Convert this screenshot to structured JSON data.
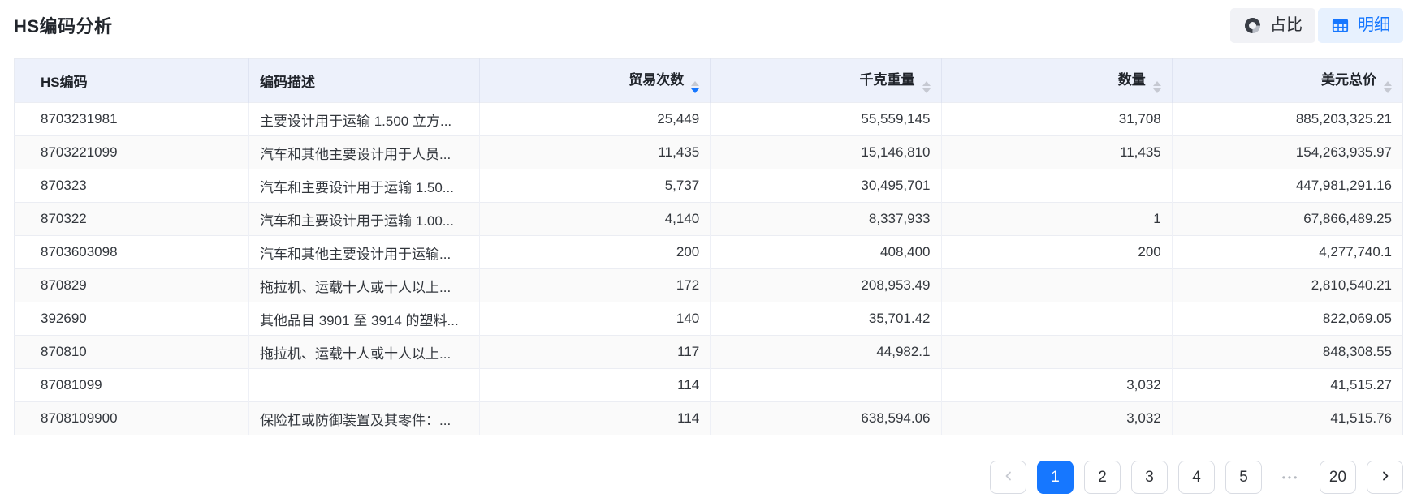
{
  "page_title": "HS编码分析",
  "colors": {
    "accent": "#1677ff",
    "header_bg": "#edf1fb"
  },
  "view_toggle": {
    "proportion": {
      "label": "占比",
      "icon": "donut-chart-icon",
      "active": false
    },
    "detail": {
      "label": "明细",
      "icon": "table-icon",
      "active": true
    }
  },
  "table": {
    "columns": [
      {
        "key": "hs_code",
        "label": "HS编码",
        "align": "left",
        "sortable": false,
        "sort": "none"
      },
      {
        "key": "description",
        "label": "编码描述",
        "align": "left",
        "sortable": false,
        "sort": "none"
      },
      {
        "key": "trade_count",
        "label": "贸易次数",
        "align": "right",
        "sortable": true,
        "sort": "desc"
      },
      {
        "key": "kg_weight",
        "label": "千克重量",
        "align": "right",
        "sortable": true,
        "sort": "none"
      },
      {
        "key": "quantity",
        "label": "数量",
        "align": "right",
        "sortable": true,
        "sort": "none"
      },
      {
        "key": "usd_total",
        "label": "美元总价",
        "align": "right",
        "sortable": true,
        "sort": "none"
      }
    ],
    "rows": [
      {
        "hs_code": "8703231981",
        "description": "主要设计用于运输 1.500 立方...",
        "trade_count": "25,449",
        "kg_weight": "55,559,145",
        "quantity": "31,708",
        "usd_total": "885,203,325.21"
      },
      {
        "hs_code": "8703221099",
        "description": "汽车和其他主要设计用于人员...",
        "trade_count": "11,435",
        "kg_weight": "15,146,810",
        "quantity": "11,435",
        "usd_total": "154,263,935.97"
      },
      {
        "hs_code": "870323",
        "description": "汽车和主要设计用于运输 1.50...",
        "trade_count": "5,737",
        "kg_weight": "30,495,701",
        "quantity": "",
        "usd_total": "447,981,291.16"
      },
      {
        "hs_code": "870322",
        "description": "汽车和主要设计用于运输 1.00...",
        "trade_count": "4,140",
        "kg_weight": "8,337,933",
        "quantity": "1",
        "usd_total": "67,866,489.25"
      },
      {
        "hs_code": "8703603098",
        "description": "汽车和其他主要设计用于运输...",
        "trade_count": "200",
        "kg_weight": "408,400",
        "quantity": "200",
        "usd_total": "4,277,740.1"
      },
      {
        "hs_code": "870829",
        "description": "拖拉机、运载十人或十人以上...",
        "trade_count": "172",
        "kg_weight": "208,953.49",
        "quantity": "",
        "usd_total": "2,810,540.21"
      },
      {
        "hs_code": "392690",
        "description": "其他品目 3901 至 3914 的塑料...",
        "trade_count": "140",
        "kg_weight": "35,701.42",
        "quantity": "",
        "usd_total": "822,069.05"
      },
      {
        "hs_code": "870810",
        "description": "拖拉机、运载十人或十人以上...",
        "trade_count": "117",
        "kg_weight": "44,982.1",
        "quantity": "",
        "usd_total": "848,308.55"
      },
      {
        "hs_code": "87081099",
        "description": "",
        "trade_count": "114",
        "kg_weight": "",
        "quantity": "3,032",
        "usd_total": "41,515.27"
      },
      {
        "hs_code": "8708109900",
        "description": "保险杠或防御装置及其零件：...",
        "trade_count": "114",
        "kg_weight": "638,594.06",
        "quantity": "3,032",
        "usd_total": "41,515.76"
      }
    ]
  },
  "pagination": {
    "items": [
      {
        "type": "prev",
        "icon": "chevron-left-icon",
        "disabled": true
      },
      {
        "type": "page",
        "label": "1",
        "active": true
      },
      {
        "type": "page",
        "label": "2",
        "active": false
      },
      {
        "type": "page",
        "label": "3",
        "active": false
      },
      {
        "type": "page",
        "label": "4",
        "active": false
      },
      {
        "type": "page",
        "label": "5",
        "active": false
      },
      {
        "type": "ellipsis",
        "label": "•••"
      },
      {
        "type": "page",
        "label": "20",
        "active": false
      },
      {
        "type": "next",
        "icon": "chevron-right-icon",
        "disabled": false
      }
    ]
  }
}
